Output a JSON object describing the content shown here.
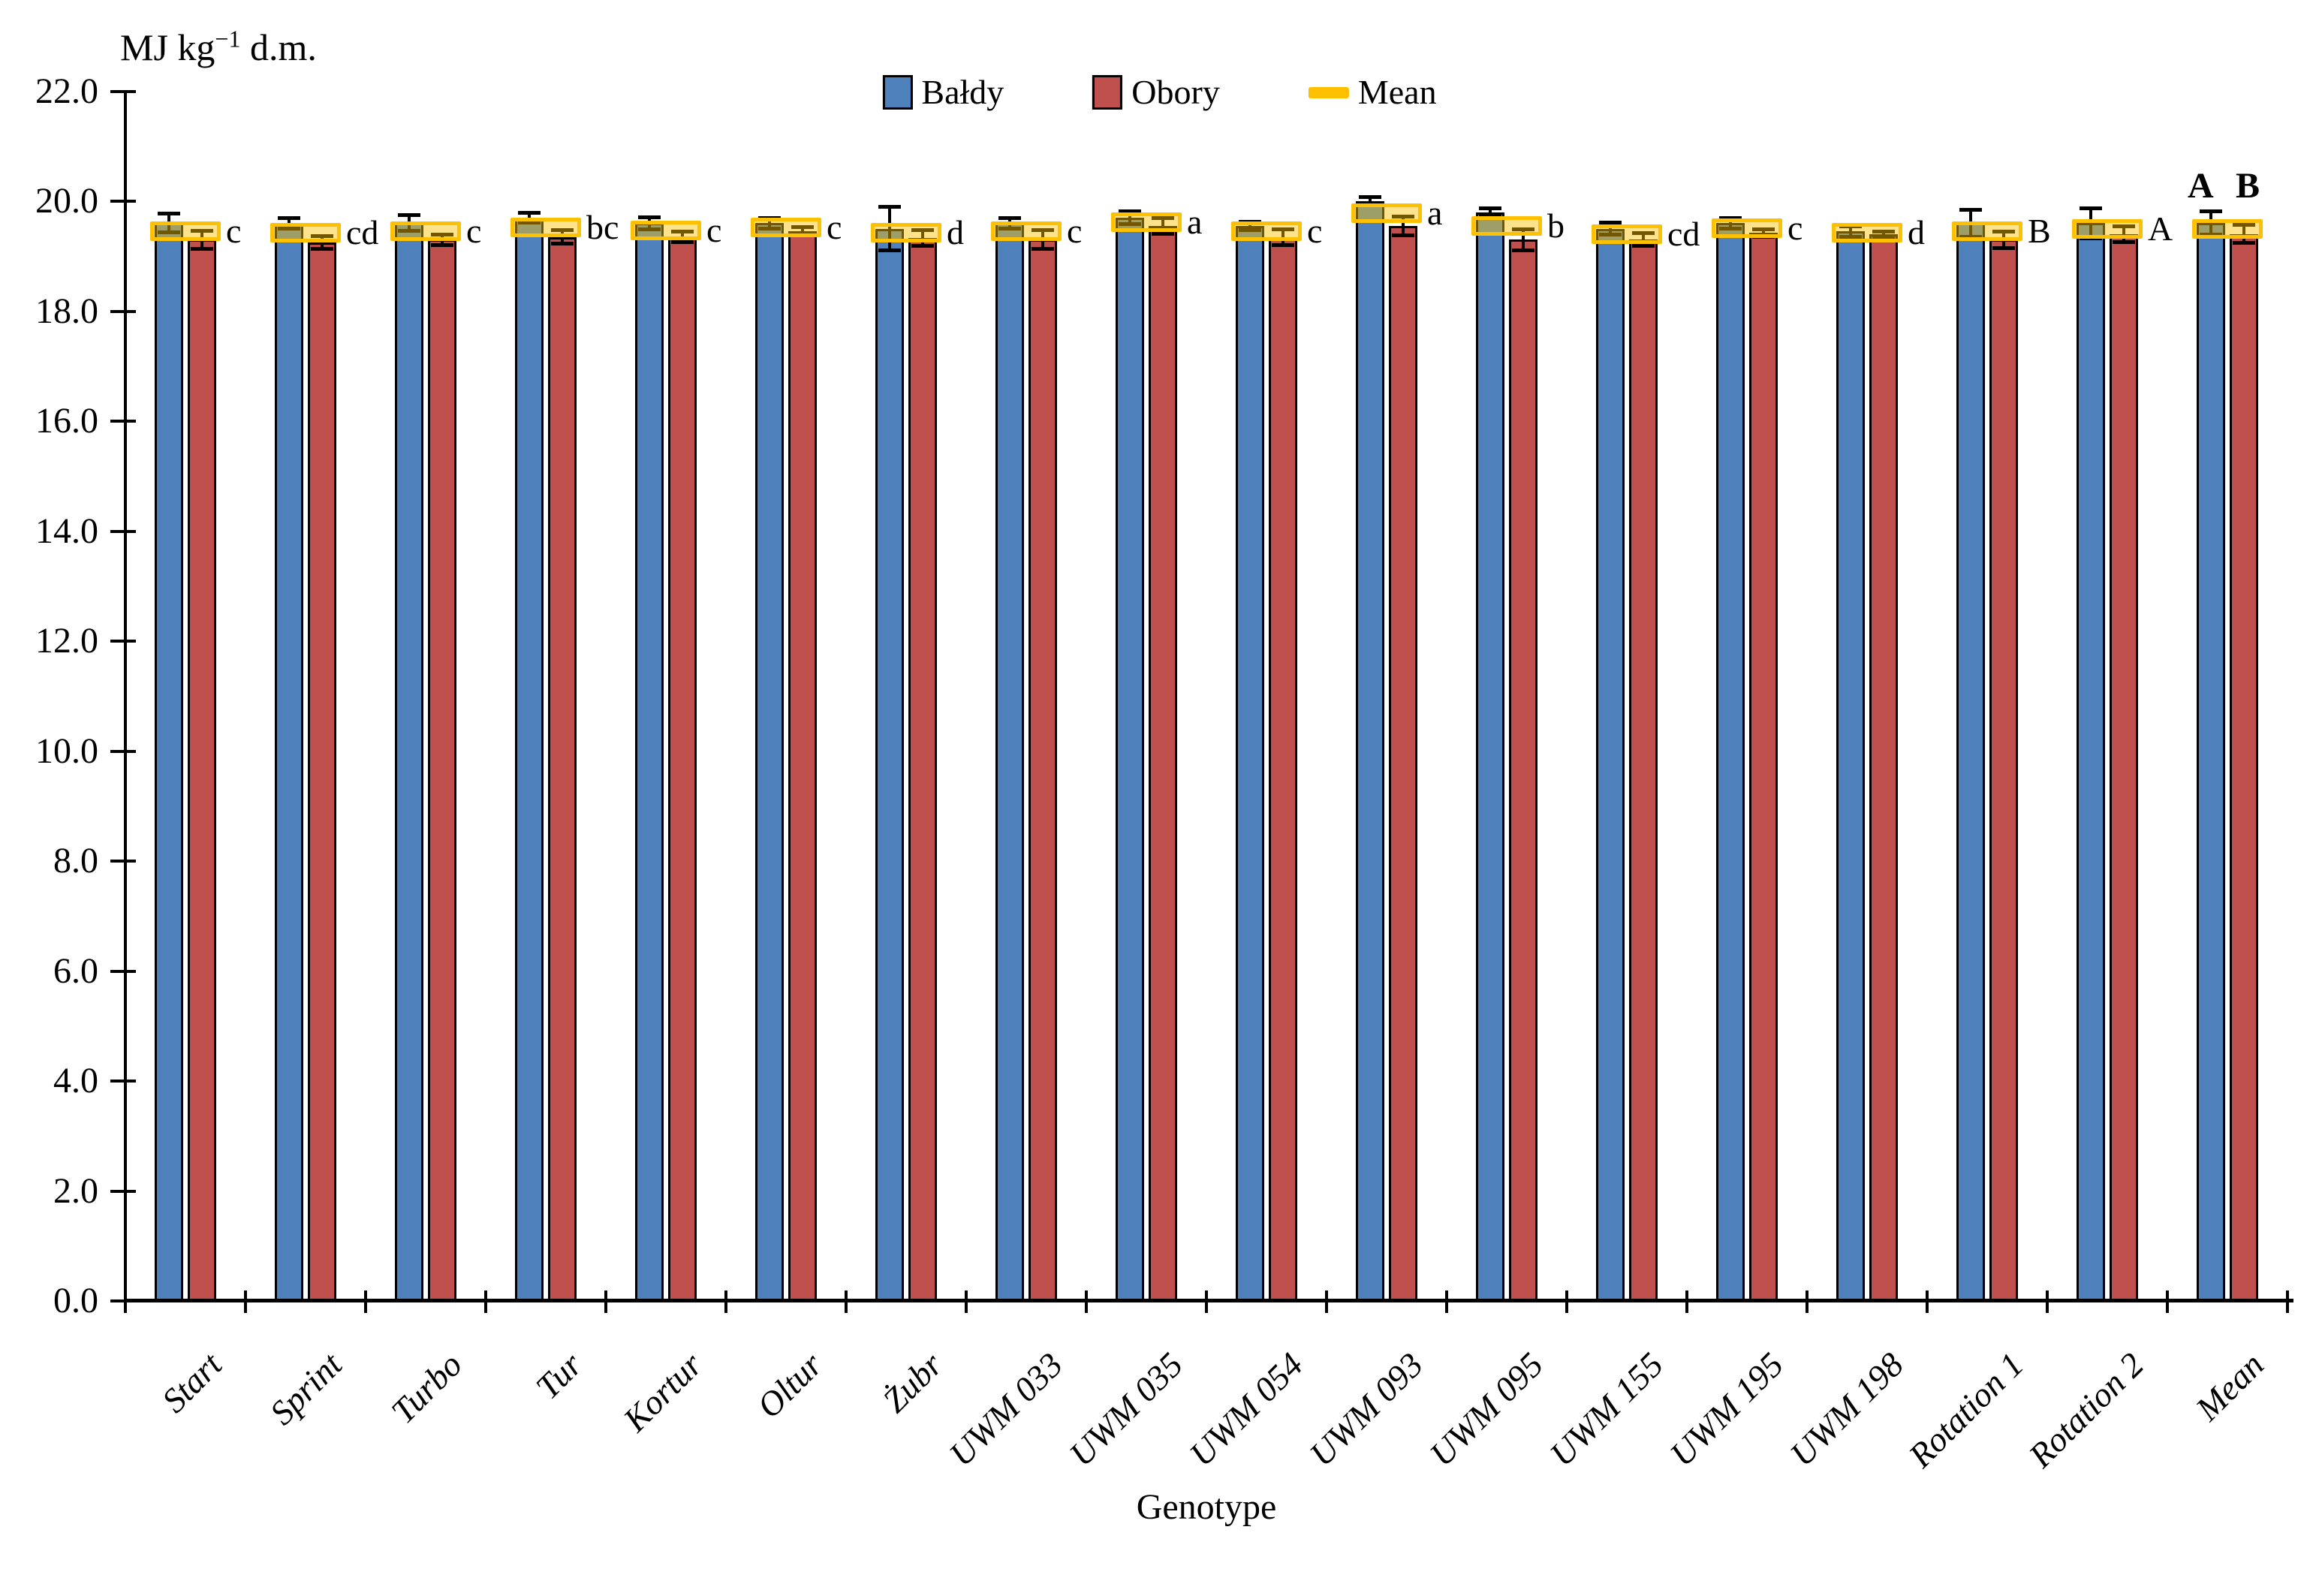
{
  "figure": {
    "y_axis_unit": {
      "prefix": "MJ kg",
      "sup": "−1",
      "suffix": " d.m."
    },
    "x_axis_title": "Genotype",
    "legend": {
      "items": [
        {
          "label": "Bałdy",
          "color": "#4F81BD"
        },
        {
          "label": "Obory",
          "color": "#C0504D"
        },
        {
          "label": "Mean",
          "color": "#FFC000"
        }
      ]
    }
  },
  "chart_data": {
    "type": "bar",
    "title": "",
    "xlabel": "Genotype",
    "ylabel": "MJ kg−1 d.m.",
    "ylim": [
      0,
      22
    ],
    "ytick_step": 2,
    "ytick_format_decimals": 1,
    "grid": false,
    "legend_position": "top-center",
    "categories": [
      "Start",
      "Sprint",
      "Turbo",
      "Tur",
      "Kortur",
      "Oltur",
      "Żubr",
      "UWM 033",
      "UWM 035",
      "UWM 054",
      "UWM 093",
      "UWM 095",
      "UWM 155",
      "UWM 195",
      "UWM 198",
      "Rotation 1",
      "Rotation 2",
      "Mean"
    ],
    "series": [
      {
        "name": "Bałdy",
        "color": "#4F81BD",
        "values": [
          19.6,
          19.6,
          19.6,
          19.7,
          19.6,
          19.6,
          19.5,
          19.6,
          19.7,
          19.55,
          20.0,
          19.8,
          19.5,
          19.6,
          19.45,
          19.6,
          19.6,
          19.6
        ],
        "errors": [
          0.18,
          0.1,
          0.15,
          0.1,
          0.12,
          0.1,
          0.4,
          0.1,
          0.12,
          0.08,
          0.08,
          0.08,
          0.12,
          0.1,
          0.1,
          0.25,
          0.28,
          0.22
        ]
      },
      {
        "name": "Obory",
        "color": "#C0504D",
        "values": [
          19.3,
          19.25,
          19.3,
          19.35,
          19.35,
          19.45,
          19.33,
          19.3,
          19.55,
          19.35,
          19.55,
          19.3,
          19.3,
          19.42,
          19.4,
          19.3,
          19.4,
          19.4
        ],
        "errors": [
          0.17,
          0.12,
          0.1,
          0.13,
          0.1,
          0.08,
          0.15,
          0.18,
          0.15,
          0.15,
          0.18,
          0.2,
          0.12,
          0.08,
          0.06,
          0.16,
          0.15,
          0.17
        ]
      },
      {
        "name": "Mean",
        "marker": "band",
        "color": "#FFC000",
        "values": [
          19.45,
          19.42,
          19.45,
          19.52,
          19.47,
          19.52,
          19.42,
          19.45,
          19.62,
          19.45,
          19.78,
          19.55,
          19.4,
          19.51,
          19.43,
          19.45,
          19.5,
          19.5
        ]
      }
    ],
    "sig_letters": [
      "c",
      "cd",
      "c",
      "bc",
      "c",
      "c",
      "d",
      "c",
      "a",
      "c",
      "a",
      "b",
      "cd",
      "c",
      "d",
      "B",
      "A",
      "A B"
    ],
    "sig_letter_last_bold_above": true
  }
}
